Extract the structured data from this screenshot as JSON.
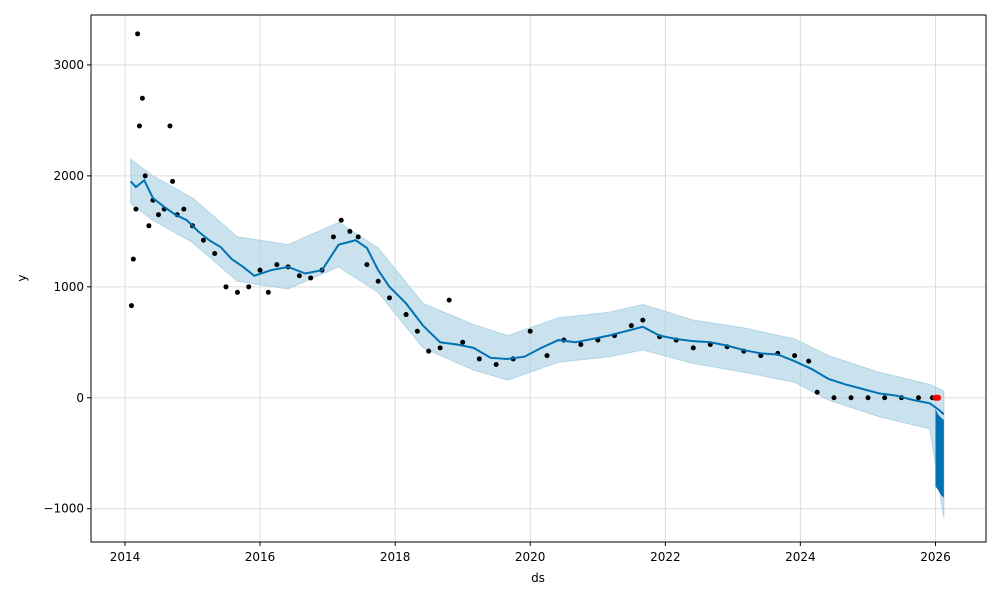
{
  "chart_data": {
    "type": "line",
    "xlabel": "ds",
    "ylabel": "y",
    "xlim": [
      "2013-07-01",
      "2026-10-01"
    ],
    "ylim": [
      -1300,
      3450
    ],
    "x_ticks": [
      "2014",
      "2016",
      "2018",
      "2020",
      "2022",
      "2024",
      "2026"
    ],
    "y_ticks": [
      {
        "value": -1000,
        "label": "−1000"
      },
      {
        "value": 0,
        "label": "0"
      },
      {
        "value": 1000,
        "label": "1000"
      },
      {
        "value": 2000,
        "label": "2000"
      },
      {
        "value": 3000,
        "label": "3000"
      }
    ],
    "grid": true,
    "colors": {
      "observed": "#000000",
      "forecast": "#0072B2",
      "interval": "#A6CEE3",
      "highlight": "#FF0000"
    },
    "series": [
      {
        "role": "forecast",
        "x": [
          "2014-02-01",
          "2014-03-01",
          "2014-04-15",
          "2014-06-01",
          "2014-08-01",
          "2014-10-01",
          "2014-12-01",
          "2015-02-01",
          "2015-04-01",
          "2015-06-01",
          "2015-08-01",
          "2015-10-01",
          "2015-12-01",
          "2016-03-01",
          "2016-06-01",
          "2016-09-01",
          "2016-12-01",
          "2017-03-01",
          "2017-06-01",
          "2017-08-01",
          "2017-10-01",
          "2017-12-01",
          "2018-03-01",
          "2018-06-01",
          "2018-09-01",
          "2018-12-01",
          "2019-03-01",
          "2019-06-01",
          "2019-09-01",
          "2019-12-01",
          "2020-03-01",
          "2020-06-01",
          "2020-09-01",
          "2020-12-01",
          "2021-03-01",
          "2021-06-01",
          "2021-09-01",
          "2021-12-01",
          "2022-03-01",
          "2022-06-01",
          "2022-09-01",
          "2022-12-01",
          "2023-03-01",
          "2023-06-01",
          "2023-09-01",
          "2023-12-01",
          "2024-03-01",
          "2024-06-01",
          "2024-09-01",
          "2024-12-01",
          "2025-03-01",
          "2025-06-01",
          "2025-09-01",
          "2025-12-01",
          "2026-01-20",
          "2026-02-15"
        ],
        "y": [
          1950,
          1900,
          1960,
          1800,
          1720,
          1650,
          1600,
          1500,
          1420,
          1360,
          1250,
          1180,
          1100,
          1150,
          1180,
          1120,
          1150,
          1380,
          1420,
          1350,
          1150,
          1000,
          850,
          650,
          500,
          480,
          450,
          360,
          350,
          370,
          450,
          520,
          500,
          530,
          560,
          600,
          640,
          560,
          530,
          510,
          500,
          470,
          430,
          400,
          390,
          330,
          260,
          170,
          120,
          80,
          40,
          20,
          -20,
          -50,
          -110,
          -150
        ]
      },
      {
        "role": "interval_upper",
        "x": [
          "2014-02-01",
          "2014-06-01",
          "2015-01-01",
          "2015-09-01",
          "2016-06-01",
          "2017-03-01",
          "2017-10-01",
          "2018-06-01",
          "2019-03-01",
          "2019-09-01",
          "2020-06-01",
          "2021-03-01",
          "2021-09-01",
          "2022-06-01",
          "2023-03-01",
          "2023-12-01",
          "2024-06-01",
          "2025-03-01",
          "2025-12-01",
          "2026-02-15"
        ],
        "y": [
          2150,
          2000,
          1800,
          1450,
          1380,
          1580,
          1350,
          850,
          660,
          560,
          720,
          770,
          840,
          700,
          630,
          530,
          380,
          230,
          120,
          60
        ]
      },
      {
        "role": "interval_lower",
        "x": [
          "2014-02-01",
          "2014-06-01",
          "2015-01-01",
          "2015-09-01",
          "2016-06-01",
          "2017-03-01",
          "2017-10-01",
          "2018-06-01",
          "2019-03-01",
          "2019-09-01",
          "2020-06-01",
          "2021-03-01",
          "2021-09-01",
          "2022-06-01",
          "2023-03-01",
          "2023-12-01",
          "2024-06-01",
          "2025-03-01",
          "2025-12-01",
          "2026-02-15"
        ],
        "y": [
          1750,
          1600,
          1400,
          1050,
          980,
          1180,
          950,
          450,
          250,
          160,
          320,
          370,
          430,
          310,
          230,
          140,
          -20,
          -170,
          -280,
          -1080
        ]
      },
      {
        "role": "observed",
        "x": [
          "2014-02-05",
          "2014-02-15",
          "2014-03-01",
          "2014-03-10",
          "2014-03-20",
          "2014-04-05",
          "2014-04-20",
          "2014-05-10",
          "2014-06-01",
          "2014-07-01",
          "2014-08-01",
          "2014-09-01",
          "2014-09-15",
          "2014-10-10",
          "2014-11-15",
          "2015-01-01",
          "2015-03-01",
          "2015-05-01",
          "2015-07-01",
          "2015-09-01",
          "2015-11-01",
          "2016-01-01",
          "2016-02-15",
          "2016-04-01",
          "2016-06-01",
          "2016-08-01",
          "2016-10-01",
          "2016-12-01",
          "2017-02-01",
          "2017-03-15",
          "2017-05-01",
          "2017-06-15",
          "2017-08-01",
          "2017-10-01",
          "2017-12-01",
          "2018-03-01",
          "2018-05-01",
          "2018-07-01",
          "2018-09-01",
          "2018-10-20",
          "2019-01-01",
          "2019-04-01",
          "2019-07-01",
          "2019-10-01",
          "2020-01-01",
          "2020-04-01",
          "2020-07-01",
          "2020-10-01",
          "2021-01-01",
          "2021-04-01",
          "2021-07-01",
          "2021-09-01",
          "2021-12-01",
          "2022-03-01",
          "2022-06-01",
          "2022-09-01",
          "2022-12-01",
          "2023-03-01",
          "2023-06-01",
          "2023-09-01",
          "2023-12-01",
          "2024-02-15",
          "2024-04-01",
          "2024-07-01",
          "2024-10-01",
          "2025-01-01",
          "2025-04-01",
          "2025-07-01",
          "2025-10-01",
          "2025-12-15"
        ],
        "y": [
          830,
          1250,
          1700,
          3280,
          2450,
          2700,
          2000,
          1550,
          1780,
          1650,
          1700,
          2450,
          1950,
          1650,
          1700,
          1550,
          1420,
          1300,
          1000,
          950,
          1000,
          1150,
          950,
          1200,
          1180,
          1100,
          1080,
          1150,
          1450,
          1600,
          1500,
          1450,
          1200,
          1050,
          900,
          750,
          600,
          420,
          450,
          880,
          500,
          350,
          300,
          350,
          600,
          380,
          520,
          480,
          520,
          560,
          650,
          700,
          550,
          520,
          450,
          480,
          460,
          420,
          380,
          400,
          380,
          330,
          50,
          0,
          0,
          0,
          0,
          0,
          0,
          0
        ]
      },
      {
        "role": "highlight",
        "x": [
          "2026-01-01",
          "2026-01-08",
          "2026-01-15"
        ],
        "y": [
          0,
          0,
          0
        ]
      },
      {
        "role": "forecast_band",
        "x": [
          "2026-01-01",
          "2026-01-15",
          "2026-02-01",
          "2026-02-15"
        ],
        "y_low": [
          -800,
          -830,
          -880,
          -900
        ],
        "y_high": [
          -100,
          -150,
          -180,
          -200
        ]
      }
    ]
  }
}
